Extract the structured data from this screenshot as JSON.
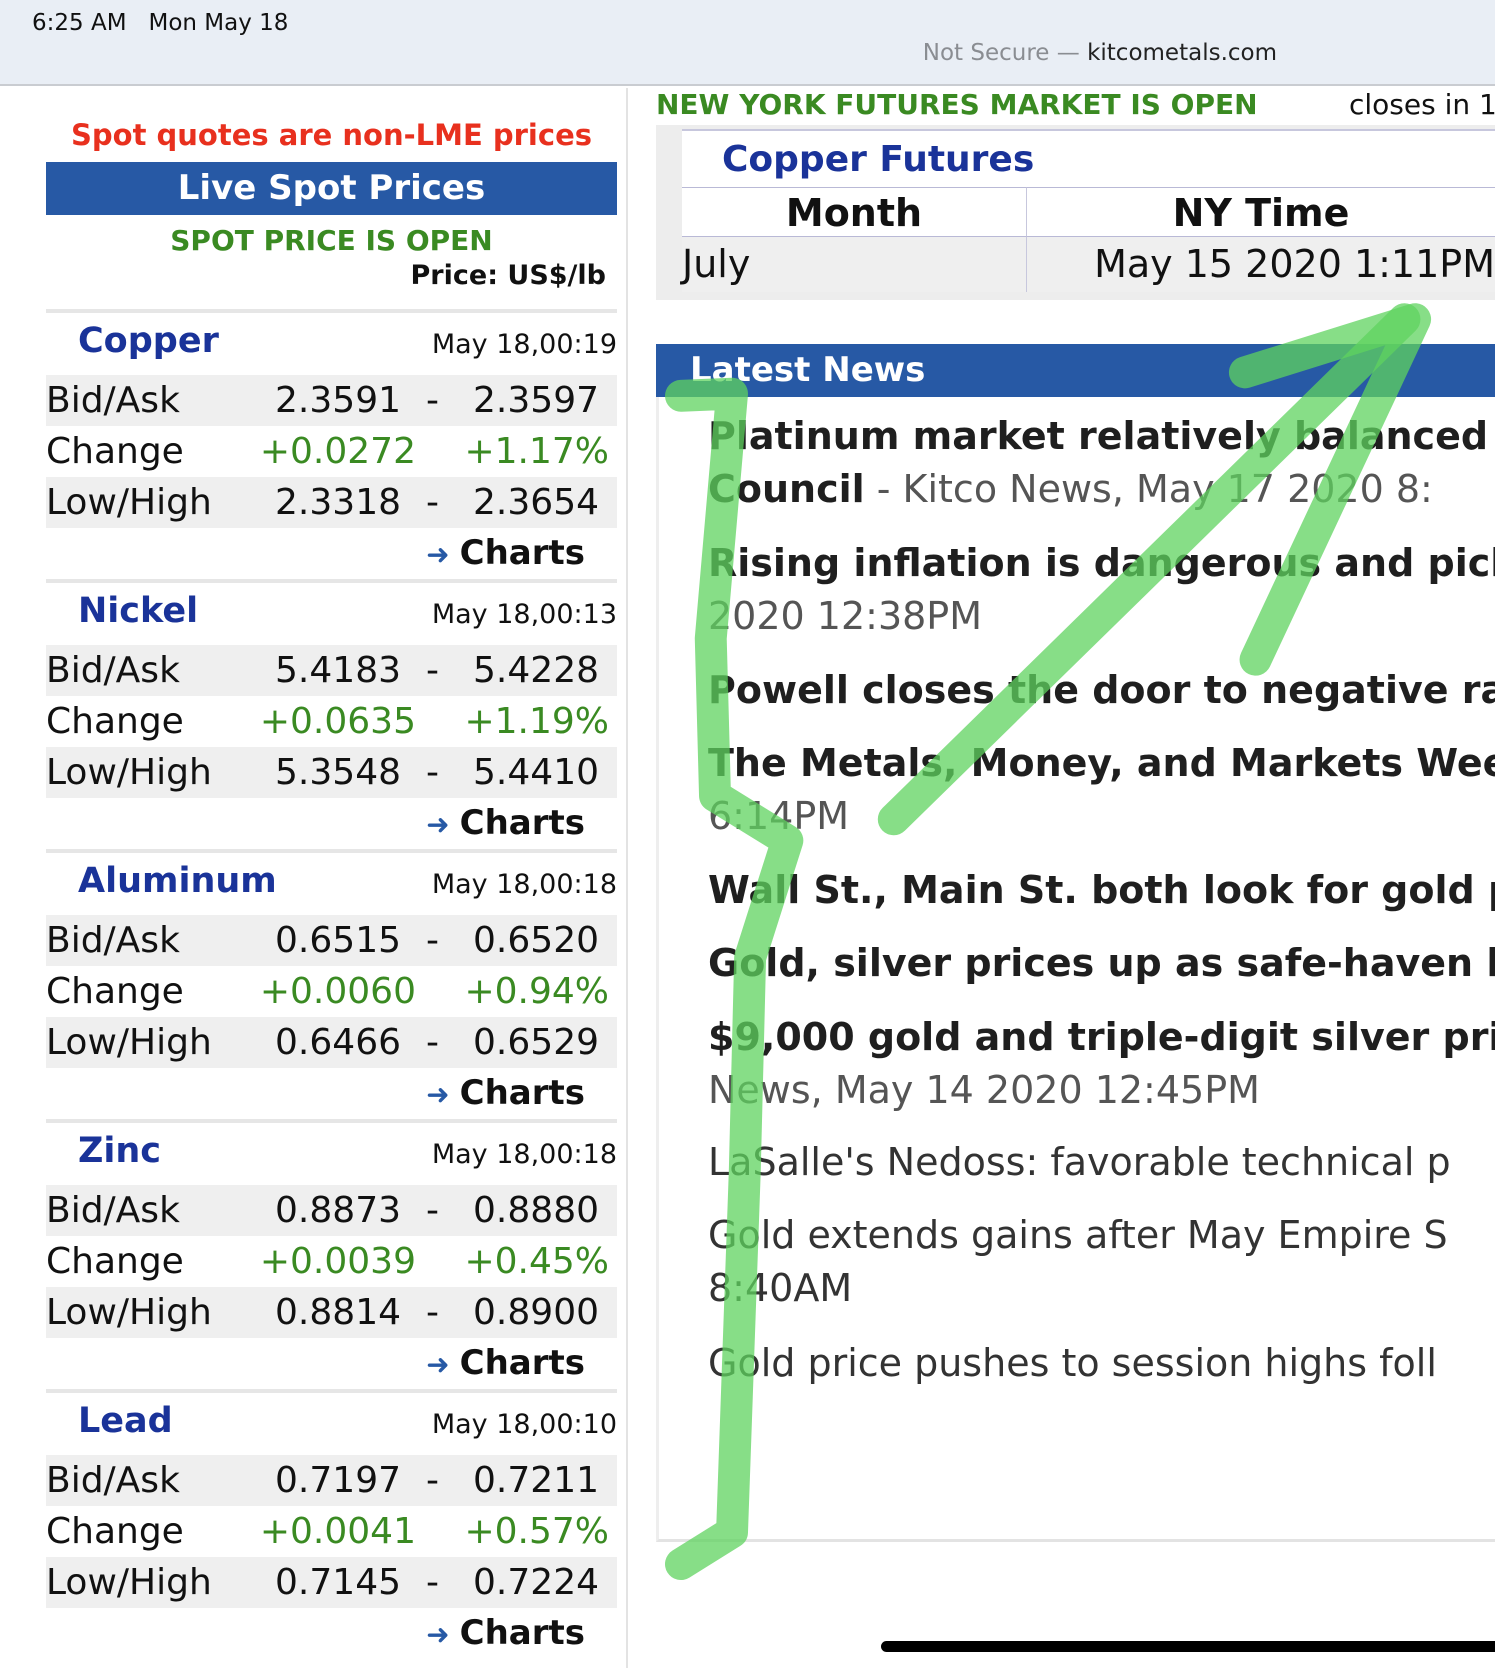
{
  "status_bar": {
    "time": "6:25 AM",
    "date": "Mon May 18",
    "security": "Not Secure —",
    "domain": "kitcometals.com"
  },
  "left": {
    "notice": "Spot quotes are non-LME prices",
    "header": "Live Spot Prices",
    "spot_status": "SPOT PRICE IS OPEN",
    "unit": "Price: US$/lb",
    "labels": {
      "bidask": "Bid/Ask",
      "change": "Change",
      "lowhigh": "Low/High",
      "dash": "-",
      "charts": "Charts"
    },
    "metals": [
      {
        "name": "Copper",
        "time": "May 18,00:19",
        "bid": "2.3591",
        "ask": "2.3597",
        "change": "+0.0272",
        "change_pct": "+1.17%",
        "low": "2.3318",
        "high": "2.3654"
      },
      {
        "name": "Nickel",
        "time": "May 18,00:13",
        "bid": "5.4183",
        "ask": "5.4228",
        "change": "+0.0635",
        "change_pct": "+1.19%",
        "low": "5.3548",
        "high": "5.4410"
      },
      {
        "name": "Aluminum",
        "time": "May 18,00:18",
        "bid": "0.6515",
        "ask": "0.6520",
        "change": "+0.0060",
        "change_pct": "+0.94%",
        "low": "0.6466",
        "high": "0.6529"
      },
      {
        "name": "Zinc",
        "time": "May 18,00:18",
        "bid": "0.8873",
        "ask": "0.8880",
        "change": "+0.0039",
        "change_pct": "+0.45%",
        "low": "0.8814",
        "high": "0.8900"
      },
      {
        "name": "Lead",
        "time": "May 18,00:10",
        "bid": "0.7197",
        "ask": "0.7211",
        "change": "+0.0041",
        "change_pct": "+0.57%",
        "low": "0.7145",
        "high": "0.7224"
      }
    ]
  },
  "futures": {
    "market_status": "NEW YORK FUTURES MARKET IS OPEN",
    "closes": "closes in 1",
    "title": "Copper Futures",
    "col_month": "Month",
    "col_time": "NY Time",
    "month": "July",
    "ny_time": "May 15 2020 1:11PM"
  },
  "news": {
    "header": "Latest News",
    "items": [
      {
        "title": "Platinum market relatively balanced",
        "title2": "Council",
        "source": " - Kitco News, May 17 2020 8:"
      },
      {
        "title": "Rising inflation is dangerous and pick",
        "source": "2020 12:38PM"
      },
      {
        "title": "Powell closes the door to negative ra"
      },
      {
        "title": "The Metals, Money, and Markets Wee",
        "source": "6:14PM"
      },
      {
        "title": "Wall St., Main St. both look for gold p"
      },
      {
        "title": "Gold, silver prices up as safe-haven b"
      },
      {
        "title": "$9,000 gold and triple-digit silver pri",
        "source": "News, May 14 2020 12:45PM"
      },
      {
        "plain": "LaSalle's Nedoss: favorable technical p"
      },
      {
        "plain": "Gold extends gains after May Empire S",
        "source": "8:40AM"
      },
      {
        "plain": "Gold price pushes to session highs foll"
      }
    ]
  },
  "colors": {
    "accent_blue": "#2759a5",
    "title_navy": "#1a3399",
    "positive_green": "#3a8a22",
    "warning_red": "#e8301e",
    "annotation_green": "#5fd35f"
  }
}
